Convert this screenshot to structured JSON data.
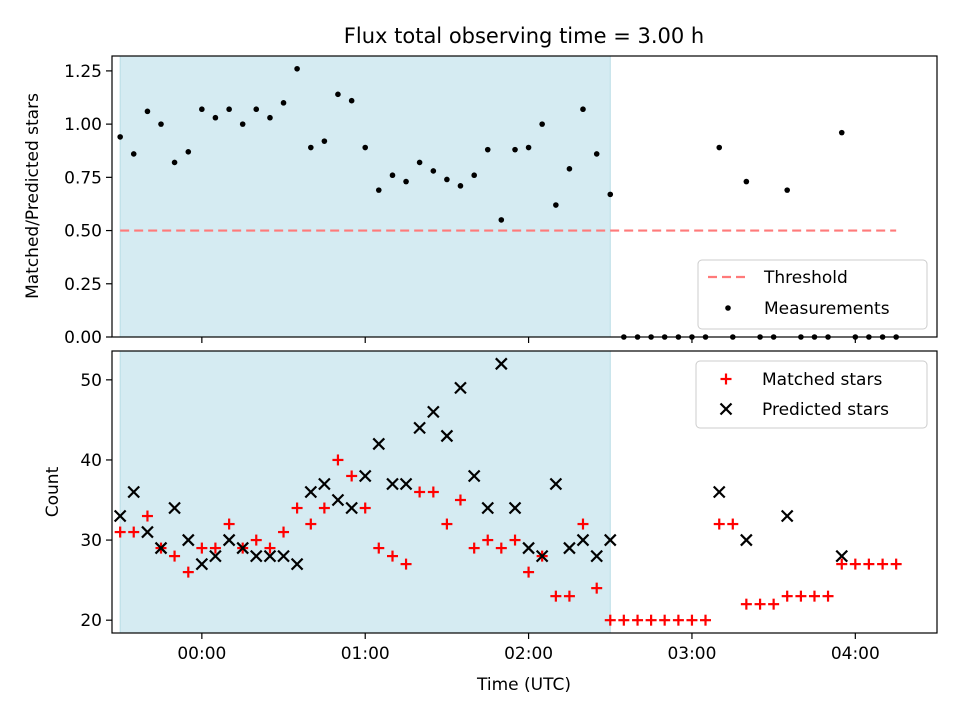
{
  "chart_data": [
    {
      "type": "scatter",
      "title": "Flux total observing time = 3.00 h",
      "xlabel": "",
      "ylabel": "Matched/Predicted stars",
      "ylim": [
        0.0,
        1.32
      ],
      "xlim": [
        -0.55,
        4.5
      ],
      "yticks": [
        0.0,
        0.25,
        0.5,
        0.75,
        1.0,
        1.25
      ],
      "ytick_labels": [
        "0.00",
        "0.25",
        "0.50",
        "0.75",
        "1.00",
        "1.25"
      ],
      "shaded_interval": {
        "x": [
          -0.5,
          2.5
        ],
        "color": "#d5ebf2"
      },
      "threshold": {
        "name": "Threshold",
        "value": 0.5,
        "x": [
          -0.5,
          4.25
        ],
        "color": "#ff7a7a"
      },
      "measurements": {
        "name": "Measurements",
        "color": "#000000",
        "x": [
          -0.5,
          -0.417,
          -0.333,
          -0.25,
          -0.167,
          -0.083,
          0.0,
          0.083,
          0.167,
          0.25,
          0.333,
          0.417,
          0.5,
          0.583,
          0.667,
          0.75,
          0.833,
          0.917,
          1.0,
          1.083,
          1.167,
          1.25,
          1.333,
          1.417,
          1.5,
          1.583,
          1.667,
          1.75,
          1.833,
          1.917,
          2.0,
          2.083,
          2.167,
          2.25,
          2.333,
          2.417,
          2.5,
          2.583,
          2.667,
          2.75,
          2.833,
          2.917,
          3.0,
          3.083,
          3.167,
          3.25,
          3.333,
          3.417,
          3.5,
          3.583,
          3.667,
          3.75,
          3.833,
          3.917,
          4.0,
          4.083,
          4.167,
          4.25
        ],
        "y": [
          0.94,
          0.86,
          1.06,
          1.0,
          0.82,
          0.87,
          1.07,
          1.03,
          1.07,
          1.0,
          1.07,
          1.03,
          1.1,
          1.26,
          0.89,
          0.92,
          1.14,
          1.11,
          0.89,
          0.69,
          0.76,
          0.73,
          0.82,
          0.78,
          0.74,
          0.71,
          0.76,
          0.88,
          0.55,
          0.88,
          0.89,
          1.0,
          0.62,
          0.79,
          1.07,
          0.86,
          0.67,
          0.0,
          0.0,
          0.0,
          0.0,
          0.0,
          0.0,
          0.0,
          0.89,
          0.0,
          0.73,
          0.0,
          0.0,
          0.69,
          0.0,
          0.0,
          0.0,
          0.96,
          0.0,
          0.0,
          0.0,
          0.0
        ]
      },
      "legend": {
        "placement": "bottom-right",
        "entries": [
          "Threshold",
          "Measurements"
        ]
      }
    },
    {
      "type": "scatter",
      "title": "",
      "xlabel": "Time (UTC)",
      "ylabel": "Count",
      "ylim": [
        18.4,
        53.6
      ],
      "xlim": [
        -0.55,
        4.5
      ],
      "yticks": [
        20,
        30,
        40,
        50
      ],
      "ytick_labels": [
        "20",
        "30",
        "40",
        "50"
      ],
      "xticks": [
        0,
        1,
        2,
        3,
        4
      ],
      "xtick_labels": [
        "00:00",
        "01:00",
        "02:00",
        "03:00",
        "04:00"
      ],
      "shaded_interval": {
        "x": [
          -0.5,
          2.5
        ],
        "color": "#d5ebf2"
      },
      "series": [
        {
          "name": "Matched stars",
          "marker": "plus",
          "color": "#ff0000",
          "x": [
            -0.5,
            -0.417,
            -0.333,
            -0.25,
            -0.167,
            -0.083,
            0.0,
            0.083,
            0.167,
            0.25,
            0.333,
            0.417,
            0.5,
            0.583,
            0.667,
            0.75,
            0.833,
            0.917,
            1.0,
            1.083,
            1.167,
            1.25,
            1.333,
            1.417,
            1.5,
            1.583,
            1.667,
            1.75,
            1.833,
            1.917,
            2.0,
            2.083,
            2.167,
            2.25,
            2.333,
            2.417,
            2.5,
            2.583,
            2.667,
            2.75,
            2.833,
            2.917,
            3.0,
            3.083,
            3.167,
            3.25,
            3.333,
            3.417,
            3.5,
            3.583,
            3.667,
            3.75,
            3.833,
            3.917,
            4.0,
            4.083,
            4.167,
            4.25
          ],
          "y": [
            31,
            31,
            33,
            29,
            28,
            26,
            29,
            29,
            32,
            29,
            30,
            29,
            31,
            34,
            32,
            34,
            40,
            38,
            34,
            29,
            28,
            27,
            36,
            36,
            32,
            35,
            29,
            30,
            29,
            30,
            26,
            28,
            23,
            23,
            32,
            24,
            20,
            20,
            20,
            20,
            20,
            20,
            20,
            20,
            32,
            32,
            22,
            22,
            22,
            23,
            23,
            23,
            23,
            27,
            27,
            27,
            27,
            27
          ]
        },
        {
          "name": "Predicted stars",
          "marker": "x",
          "color": "#000000",
          "x": [
            -0.5,
            -0.417,
            -0.333,
            -0.25,
            -0.167,
            -0.083,
            0.0,
            0.083,
            0.167,
            0.25,
            0.333,
            0.417,
            0.5,
            0.583,
            0.667,
            0.75,
            0.833,
            0.917,
            1.0,
            1.083,
            1.167,
            1.25,
            1.333,
            1.417,
            1.5,
            1.583,
            1.667,
            1.75,
            1.833,
            1.917,
            2.0,
            2.083,
            2.167,
            2.25,
            2.333,
            2.417,
            2.5,
            3.167,
            3.333,
            3.583,
            3.917
          ],
          "y": [
            33,
            36,
            31,
            29,
            34,
            30,
            27,
            28,
            30,
            29,
            28,
            28,
            28,
            27,
            36,
            37,
            35,
            34,
            38,
            42,
            37,
            37,
            44,
            46,
            43,
            49,
            38,
            34,
            52,
            34,
            29,
            28,
            37,
            29,
            30,
            28,
            30,
            36,
            30,
            33,
            28
          ]
        }
      ],
      "legend": {
        "placement": "top-right",
        "entries": [
          "Matched stars",
          "Predicted stars"
        ]
      }
    }
  ]
}
